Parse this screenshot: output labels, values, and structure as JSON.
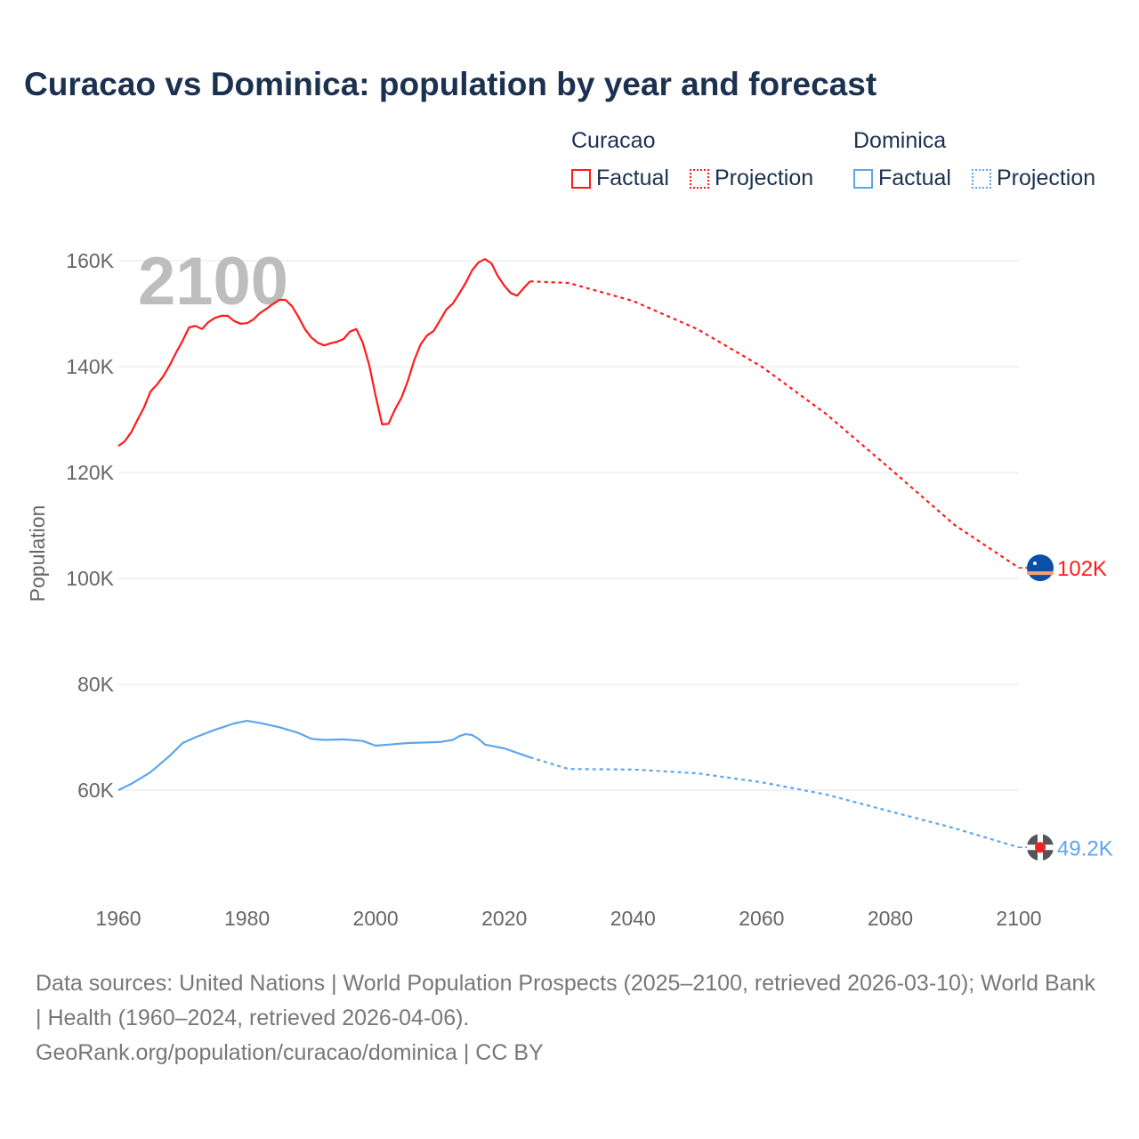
{
  "chart_data": {
    "type": "line",
    "title": "Curacao vs Dominica: population by year and forecast",
    "xlabel": "",
    "ylabel": "Population",
    "xlim": [
      1960,
      2100
    ],
    "ylim": [
      45000,
      165000
    ],
    "xticks": [
      1960,
      1980,
      2000,
      2020,
      2040,
      2060,
      2080,
      2100
    ],
    "xtick_labels": [
      "1960",
      "1980",
      "2000",
      "2020",
      "2040",
      "2060",
      "2080",
      "2100"
    ],
    "yticks": [
      60000,
      80000,
      100000,
      120000,
      140000,
      160000
    ],
    "ytick_labels": [
      "60K",
      "80K",
      "100K",
      "120K",
      "140K",
      "160K"
    ],
    "grid": true,
    "year_watermark": "2100",
    "legend": {
      "placement": "top-right",
      "groups": [
        {
          "name": "Curacao",
          "items": [
            "Factual",
            "Projection"
          ]
        },
        {
          "name": "Dominica",
          "items": [
            "Factual",
            "Projection"
          ]
        }
      ]
    },
    "series": [
      {
        "name": "Curacao Factual",
        "color": "#ff1a1a",
        "style": "solid",
        "x": [
          1960,
          1961,
          1962,
          1963,
          1964,
          1965,
          1966,
          1967,
          1968,
          1969,
          1970,
          1971,
          1972,
          1973,
          1974,
          1975,
          1976,
          1977,
          1978,
          1979,
          1980,
          1981,
          1982,
          1983,
          1984,
          1985,
          1986,
          1987,
          1988,
          1989,
          1990,
          1991,
          1992,
          1993,
          1994,
          1995,
          1996,
          1997,
          1998,
          1999,
          2000,
          2001,
          2002,
          2003,
          2004,
          2005,
          2006,
          2007,
          2008,
          2009,
          2010,
          2011,
          2012,
          2013,
          2014,
          2015,
          2016,
          2017,
          2018,
          2019,
          2020,
          2021,
          2022,
          2023,
          2024
        ],
        "y": [
          125000,
          125900,
          127600,
          130000,
          132300,
          135300,
          136600,
          138200,
          140300,
          142700,
          144900,
          147400,
          147700,
          147100,
          148400,
          149200,
          149600,
          149600,
          148600,
          148100,
          148200,
          148900,
          150100,
          150900,
          151800,
          152600,
          152600,
          151400,
          149400,
          147100,
          145500,
          144500,
          144000,
          144400,
          144700,
          145200,
          146600,
          147100,
          144500,
          140300,
          134500,
          129100,
          129200,
          131900,
          134100,
          137300,
          141200,
          144200,
          145900,
          146700,
          148700,
          150800,
          151900,
          153800,
          155800,
          158200,
          159700,
          160300,
          159500,
          157100,
          155300,
          153900,
          153400,
          154800,
          156100
        ]
      },
      {
        "name": "Curacao Projection",
        "color": "#ff1a1a",
        "style": "dotted",
        "x": [
          2024,
          2030,
          2040,
          2050,
          2060,
          2070,
          2080,
          2090,
          2100
        ],
        "y": [
          156100,
          155800,
          152400,
          147100,
          140000,
          131100,
          120700,
          110100,
          102000
        ]
      },
      {
        "name": "Dominica Factual",
        "color": "#5da5ee",
        "style": "solid",
        "x": [
          1960,
          1962,
          1965,
          1968,
          1970,
          1972,
          1975,
          1978,
          1980,
          1982,
          1985,
          1988,
          1990,
          1992,
          1995,
          1998,
          2000,
          2002,
          2005,
          2010,
          2011,
          2012,
          2013,
          2014,
          2015,
          2016,
          2017,
          2020,
          2024
        ],
        "y": [
          60000,
          61200,
          63400,
          66500,
          68900,
          70000,
          71400,
          72600,
          73100,
          72700,
          71900,
          70800,
          69700,
          69500,
          69600,
          69300,
          68400,
          68600,
          68900,
          69100,
          69300,
          69500,
          70200,
          70600,
          70400,
          69700,
          68600,
          67900,
          66200
        ]
      },
      {
        "name": "Dominica Projection",
        "color": "#5da5ee",
        "style": "dotted",
        "x": [
          2024,
          2030,
          2040,
          2050,
          2060,
          2070,
          2080,
          2090,
          2100
        ],
        "y": [
          66200,
          64000,
          63900,
          63200,
          61500,
          59200,
          56000,
          52800,
          49200
        ]
      }
    ],
    "end_labels": [
      {
        "country": "Curacao",
        "value": 102000,
        "label": "102K",
        "color": "#ff1a1a"
      },
      {
        "country": "Dominica",
        "value": 49200,
        "label": "49.2K",
        "color": "#5da5ee"
      }
    ]
  },
  "legend_labels": {
    "curacao": "Curacao",
    "dominica": "Dominica",
    "factual": "Factual",
    "projection": "Projection"
  },
  "footer": {
    "line1": "Data sources: United Nations | World Population Prospects (2025–2100, retrieved 2026-03-10); World Bank | Health (1960–2024, retrieved 2026-04-06).",
    "line2": "GeoRank.org/population/curacao/dominica | CC BY"
  }
}
